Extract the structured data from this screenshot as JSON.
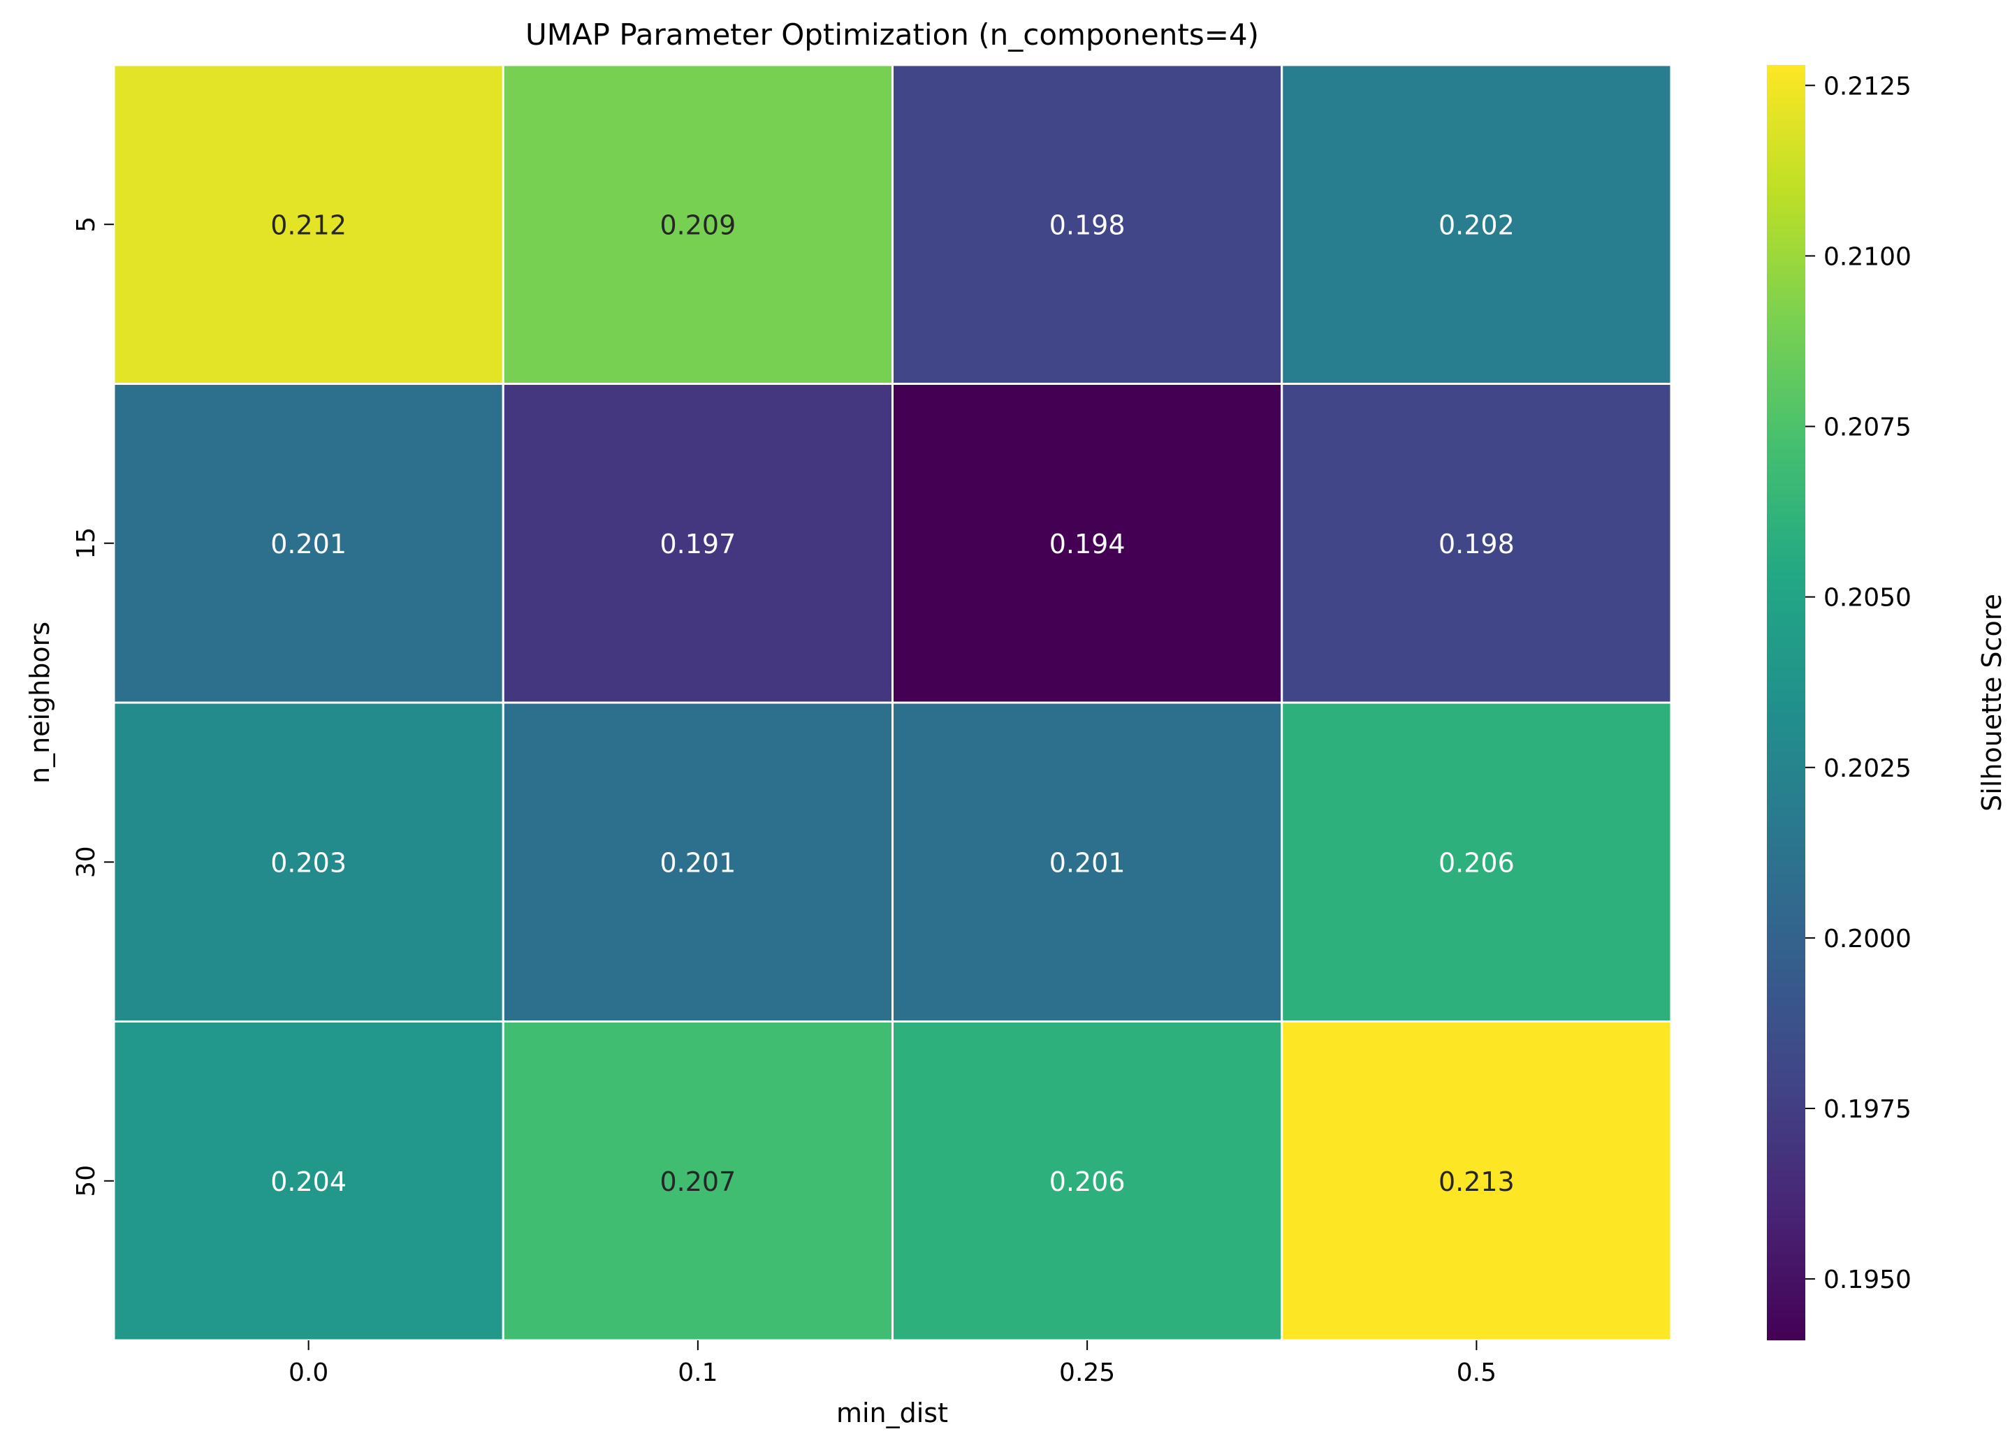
{
  "chart_data": {
    "type": "heatmap",
    "title": "UMAP Parameter Optimization (n_components=4)",
    "xlabel": "min_dist",
    "ylabel": "n_neighbors",
    "x_categories": [
      "0.0",
      "0.1",
      "0.25",
      "0.5"
    ],
    "y_categories": [
      "5",
      "15",
      "30",
      "50"
    ],
    "values": [
      [
        0.212,
        0.209,
        0.198,
        0.202
      ],
      [
        0.201,
        0.197,
        0.194,
        0.198
      ],
      [
        0.203,
        0.201,
        0.201,
        0.206
      ],
      [
        0.204,
        0.207,
        0.206,
        0.213
      ]
    ],
    "colormap": "viridis",
    "color_range": [
      0.1941,
      0.2128
    ],
    "colorbar": {
      "label": "Silhouette Score",
      "ticks": [
        0.195,
        0.1975,
        0.2,
        0.2025,
        0.205,
        0.2075,
        0.21,
        0.2125
      ],
      "tick_labels": [
        "0.1950",
        "0.1975",
        "0.2000",
        "0.2025",
        "0.2050",
        "0.2075",
        "0.2100",
        "0.2125"
      ]
    },
    "annotations_format": "3 decimals",
    "grid_line_color": "#ffffff"
  }
}
